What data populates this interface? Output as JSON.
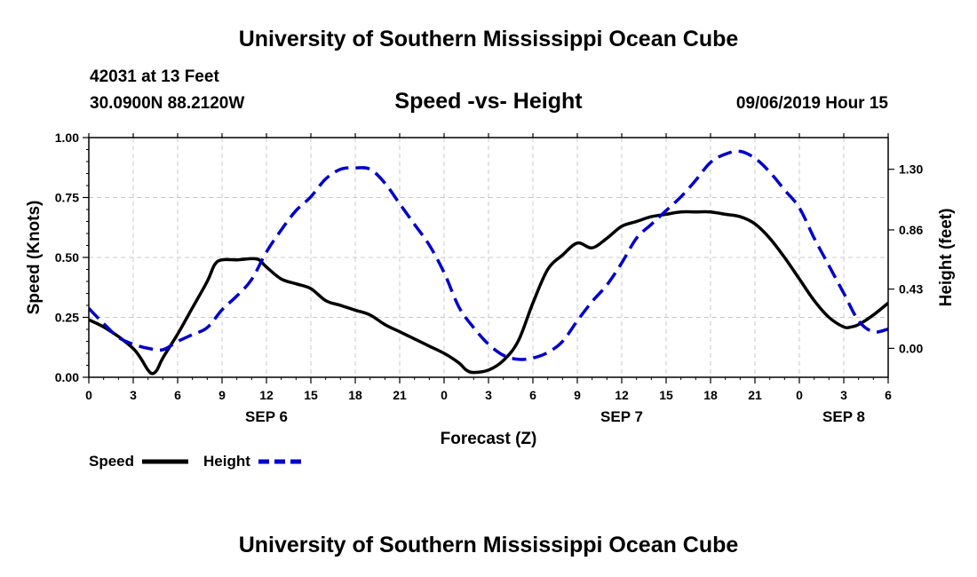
{
  "header": {
    "title": "University of Southern Mississippi Ocean Cube",
    "station": "42031 at 13 Feet",
    "coordinates": "30.0900N 88.2120W",
    "chart_title": "Speed -vs- Height",
    "datetime": "09/06/2019 Hour 15"
  },
  "footer": {
    "title": "University of Southern Mississippi Ocean Cube"
  },
  "colors": {
    "speed": "#000000",
    "height": "#0000cc",
    "grid": "#c8c8c8"
  },
  "chart_data": {
    "type": "line",
    "title": "Speed -vs- Height",
    "xlabel": "Forecast (Z)",
    "ylabel": "Speed (Knots)",
    "y2label": "Height (feet)",
    "xlim": [
      0,
      54
    ],
    "ylim": [
      0,
      1.0
    ],
    "y2lim": [
      -0.21,
      1.53
    ],
    "x_ticks": [
      0,
      3,
      6,
      9,
      12,
      15,
      18,
      21,
      24,
      27,
      30,
      33,
      36,
      39,
      42,
      45,
      48,
      51,
      54
    ],
    "x_tick_labels": [
      "0",
      "3",
      "6",
      "9",
      "12",
      "15",
      "18",
      "21",
      "0",
      "3",
      "6",
      "9",
      "12",
      "15",
      "18",
      "21",
      "0",
      "3",
      "6"
    ],
    "y_ticks": [
      0,
      0.25,
      0.5,
      0.75,
      1.0
    ],
    "y_tick_labels": [
      "0.00",
      "0.25",
      "0.50",
      "0.75",
      "1.00"
    ],
    "y2_ticks": [
      0.0,
      0.43,
      0.86,
      1.3
    ],
    "y2_tick_labels": [
      "0.00",
      "0.43",
      "0.86",
      "1.30"
    ],
    "date_labels": [
      {
        "x": 12,
        "label": "SEP 6"
      },
      {
        "x": 36,
        "label": "SEP 7"
      },
      {
        "x": 51,
        "label": "SEP 8"
      }
    ],
    "grid": true,
    "legend": [
      "Speed",
      "Height"
    ],
    "legend_position": "bottom-left",
    "series": [
      {
        "name": "Speed",
        "axis": "left",
        "style": "solid",
        "x": [
          0,
          1,
          2,
          3,
          3.5,
          4,
          4.3,
          4.6,
          5,
          6,
          7,
          8,
          8.5,
          9,
          10,
          11,
          11.5,
          12,
          13,
          14,
          15,
          16,
          17,
          18,
          19,
          20,
          21,
          22,
          23,
          24,
          25,
          25.5,
          26,
          27,
          28,
          29,
          30,
          31,
          32,
          33,
          34,
          35,
          36,
          37,
          38,
          39,
          40,
          41,
          42,
          43,
          44,
          45,
          46,
          47,
          48,
          49,
          50,
          51,
          51.5,
          52,
          53,
          54
        ],
        "values": [
          0.24,
          0.21,
          0.17,
          0.12,
          0.08,
          0.03,
          0.015,
          0.03,
          0.08,
          0.18,
          0.29,
          0.4,
          0.47,
          0.49,
          0.49,
          0.495,
          0.49,
          0.46,
          0.41,
          0.39,
          0.37,
          0.32,
          0.3,
          0.28,
          0.26,
          0.22,
          0.19,
          0.16,
          0.13,
          0.1,
          0.06,
          0.03,
          0.02,
          0.03,
          0.07,
          0.15,
          0.31,
          0.45,
          0.51,
          0.56,
          0.54,
          0.58,
          0.63,
          0.65,
          0.67,
          0.68,
          0.69,
          0.69,
          0.69,
          0.68,
          0.67,
          0.64,
          0.58,
          0.5,
          0.41,
          0.32,
          0.25,
          0.21,
          0.21,
          0.22,
          0.26,
          0.31
        ]
      },
      {
        "name": "Height",
        "axis": "right",
        "style": "dashed",
        "x": [
          0,
          1,
          2,
          3,
          4,
          5,
          6,
          7,
          8,
          9,
          10,
          11,
          12,
          13,
          14,
          15,
          16,
          17,
          18,
          19,
          20,
          21,
          22,
          23,
          24,
          25,
          26,
          27,
          28,
          29,
          30,
          31,
          32,
          33,
          34,
          35,
          36,
          37,
          38,
          39,
          40,
          41,
          42,
          43,
          44,
          45,
          46,
          47,
          48,
          49,
          50,
          51,
          52,
          53,
          54
        ],
        "values": [
          0.29,
          0.18,
          0.08,
          0.03,
          0.0,
          -0.01,
          0.05,
          0.1,
          0.15,
          0.28,
          0.38,
          0.5,
          0.7,
          0.86,
          1.0,
          1.1,
          1.23,
          1.3,
          1.31,
          1.3,
          1.2,
          1.05,
          0.9,
          0.75,
          0.55,
          0.3,
          0.15,
          0.03,
          -0.05,
          -0.08,
          -0.07,
          -0.03,
          0.05,
          0.2,
          0.34,
          0.46,
          0.62,
          0.8,
          0.9,
          1.0,
          1.1,
          1.22,
          1.35,
          1.41,
          1.43,
          1.38,
          1.28,
          1.15,
          1.02,
          0.8,
          0.6,
          0.4,
          0.2,
          0.12,
          0.14
        ]
      }
    ]
  }
}
